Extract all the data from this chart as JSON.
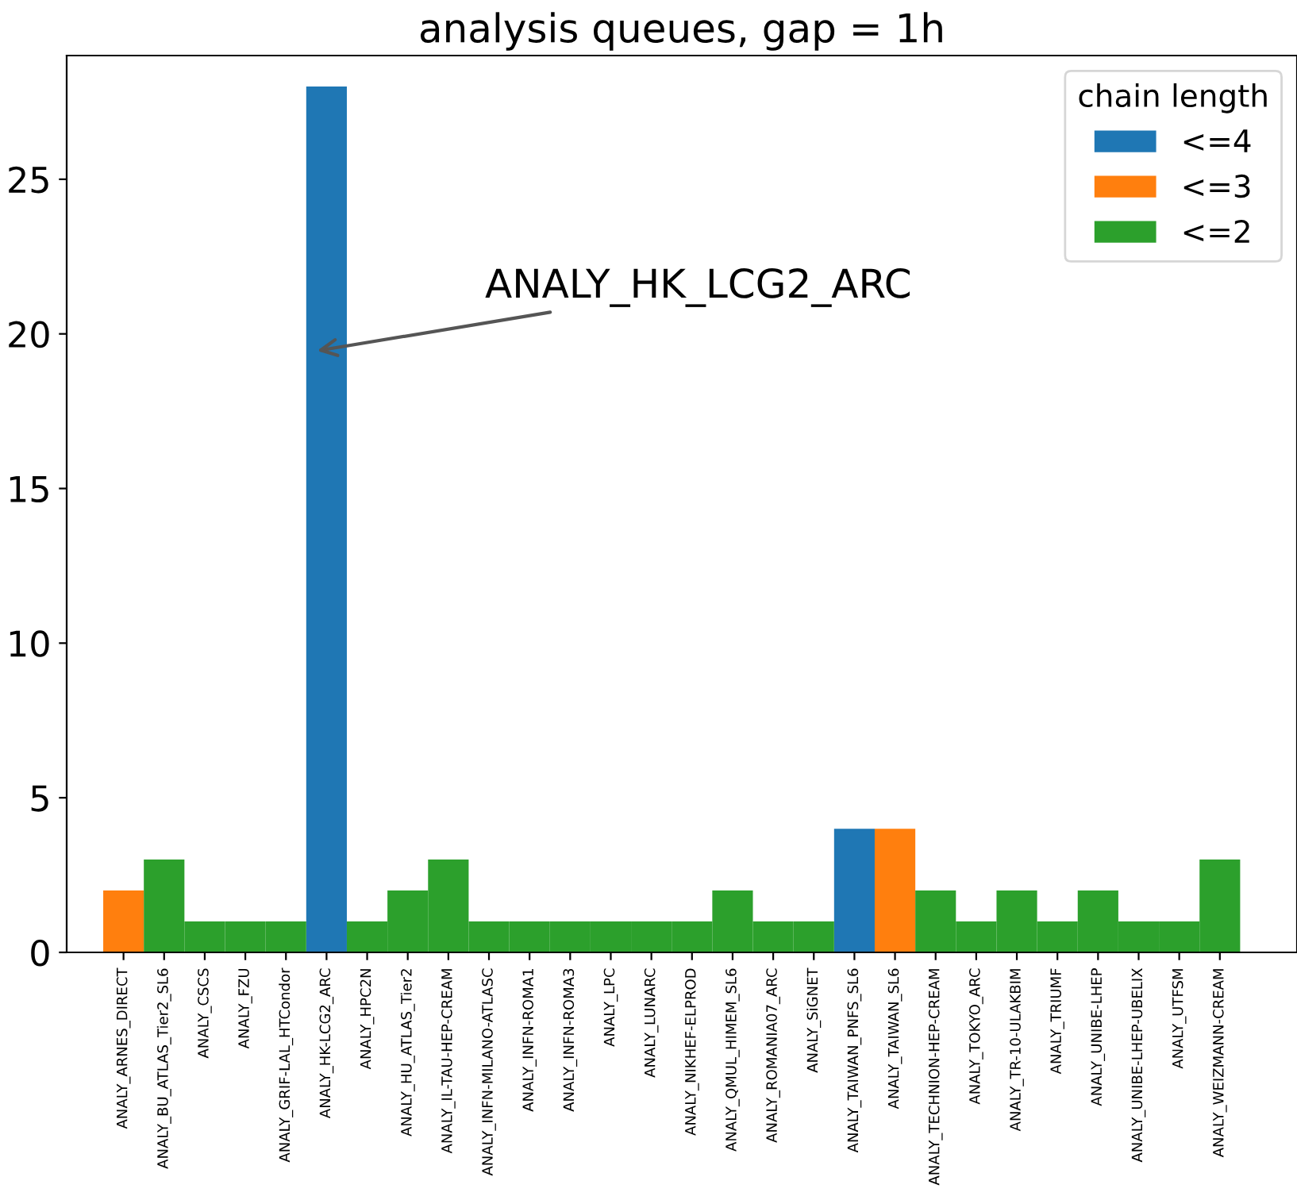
{
  "chart_data": {
    "type": "bar",
    "title": "analysis queues, gap = 1h",
    "legend_title": "chain length",
    "legend": "top right",
    "grid": false,
    "categories": [
      "ANALY_ARNES_DIRECT",
      "ANALY_BU_ATLAS_Tier2_SL6",
      "ANALY_CSCS",
      "ANALY_FZU",
      "ANALY_GRIF-LAL_HTCondor",
      "ANALY_HK-LCG2_ARC",
      "ANALY_HPC2N",
      "ANALY_HU_ATLAS_Tier2",
      "ANALY_IL-TAU-HEP-CREAM",
      "ANALY_INFN-MILANO-ATLASC",
      "ANALY_INFN-ROMA1",
      "ANALY_INFN-ROMA3",
      "ANALY_LPC",
      "ANALY_LUNARC",
      "ANALY_NIKHEF-ELPROD",
      "ANALY_QMUL_HIMEM_SL6",
      "ANALY_ROMANIA07_ARC",
      "ANALY_SiGNET",
      "ANALY_TAIWAN_PNFS_SL6",
      "ANALY_TAIWAN_SL6",
      "ANALY_TECHNION-HEP-CREAM",
      "ANALY_TOKYO_ARC",
      "ANALY_TR-10-ULAKBIM",
      "ANALY_TRIUMF",
      "ANALY_UNIBE-LHEP",
      "ANALY_UNIBE-LHEP-UBELIX",
      "ANALY_UTFSM",
      "ANALY_WEIZMANN-CREAM"
    ],
    "series": [
      {
        "name": "<=4",
        "color": "#1f77b4",
        "values": [
          null,
          null,
          null,
          null,
          null,
          28,
          null,
          null,
          null,
          null,
          null,
          null,
          null,
          null,
          null,
          null,
          null,
          null,
          4,
          null,
          null,
          null,
          null,
          null,
          null,
          null,
          null,
          null
        ]
      },
      {
        "name": "<=3",
        "color": "#ff7f0e",
        "values": [
          2,
          null,
          null,
          null,
          null,
          null,
          null,
          null,
          null,
          null,
          null,
          null,
          null,
          null,
          null,
          null,
          null,
          null,
          null,
          4,
          null,
          null,
          null,
          null,
          null,
          null,
          null,
          null
        ]
      },
      {
        "name": "<=2",
        "color": "#2ca02c",
        "values": [
          null,
          3,
          1,
          1,
          1,
          null,
          1,
          2,
          3,
          1,
          1,
          1,
          1,
          1,
          1,
          2,
          1,
          1,
          null,
          null,
          2,
          1,
          2,
          1,
          2,
          1,
          1,
          3
        ]
      }
    ],
    "ylim": [
      0,
      29
    ],
    "yticks": [
      0,
      5,
      10,
      15,
      20,
      25
    ],
    "annotations": [
      "ANALY_HK_LCG2_ARC"
    ]
  }
}
